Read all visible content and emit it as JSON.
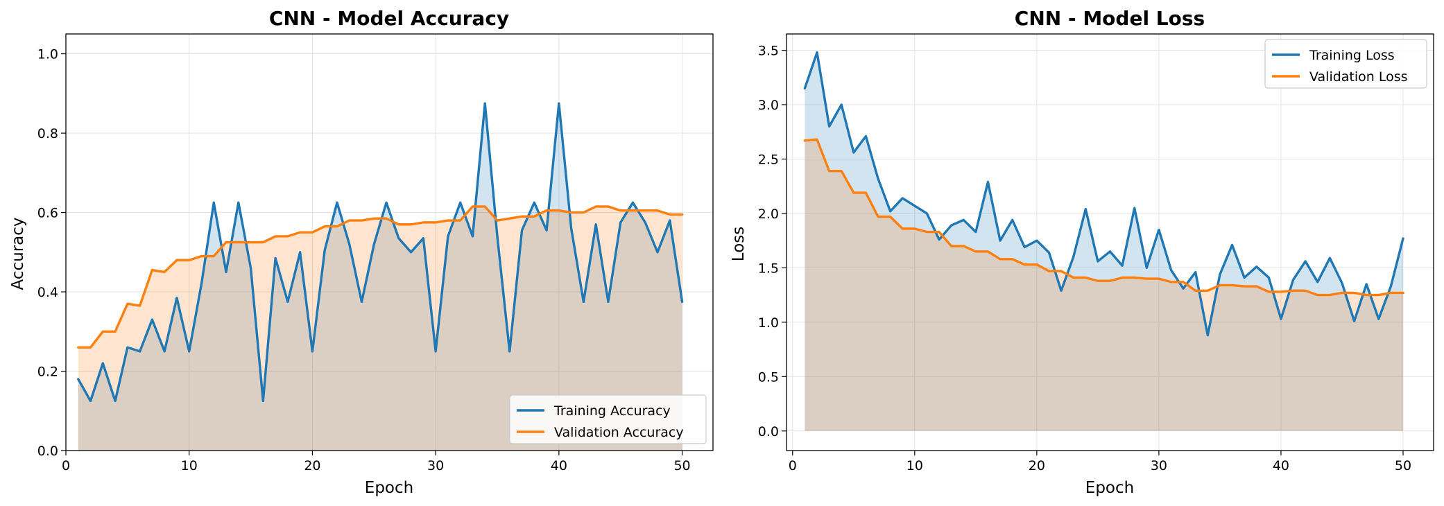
{
  "colors": {
    "training": "#1f77b4",
    "validation": "#ff7f0e",
    "grid": "#e3e3e3"
  },
  "chart_data": [
    {
      "type": "line",
      "title": "CNN - Model Accuracy",
      "xlabel": "Epoch",
      "ylabel": "Accuracy",
      "xlim": [
        0,
        52.5
      ],
      "ylim": [
        0,
        1.05
      ],
      "xticks": [
        "0",
        "10",
        "20",
        "30",
        "40",
        "50"
      ],
      "yticks": [
        "0.0",
        "0.2",
        "0.4",
        "0.6",
        "0.8",
        "1.0"
      ],
      "grid": true,
      "fill_under": true,
      "legend_position": "lower-right",
      "x": [
        1,
        2,
        3,
        4,
        5,
        6,
        7,
        8,
        9,
        10,
        11,
        12,
        13,
        14,
        15,
        16,
        17,
        18,
        19,
        20,
        21,
        22,
        23,
        24,
        25,
        26,
        27,
        28,
        29,
        30,
        31,
        32,
        33,
        34,
        35,
        36,
        37,
        38,
        39,
        40,
        41,
        42,
        43,
        44,
        45,
        46,
        47,
        48,
        49,
        50
      ],
      "series": [
        {
          "name": "Training Accuracy",
          "values": [
            0.18,
            0.125,
            0.22,
            0.125,
            0.26,
            0.25,
            0.33,
            0.25,
            0.385,
            0.25,
            0.42,
            0.625,
            0.45,
            0.625,
            0.46,
            0.125,
            0.485,
            0.375,
            0.5,
            0.25,
            0.505,
            0.625,
            0.52,
            0.375,
            0.52,
            0.625,
            0.535,
            0.5,
            0.535,
            0.25,
            0.54,
            0.625,
            0.54,
            0.875,
            0.54,
            0.25,
            0.555,
            0.625,
            0.555,
            0.875,
            0.56,
            0.375,
            0.57,
            0.375,
            0.575,
            0.625,
            0.575,
            0.5,
            0.58,
            0.375
          ]
        },
        {
          "name": "Validation Accuracy",
          "values": [
            0.26,
            0.26,
            0.3,
            0.3,
            0.37,
            0.365,
            0.455,
            0.45,
            0.48,
            0.48,
            0.49,
            0.49,
            0.525,
            0.525,
            0.525,
            0.525,
            0.54,
            0.54,
            0.55,
            0.55,
            0.565,
            0.565,
            0.58,
            0.58,
            0.585,
            0.585,
            0.57,
            0.57,
            0.575,
            0.575,
            0.58,
            0.58,
            0.615,
            0.615,
            0.58,
            0.585,
            0.59,
            0.59,
            0.605,
            0.605,
            0.6,
            0.6,
            0.615,
            0.615,
            0.605,
            0.605,
            0.605,
            0.605,
            0.595,
            0.595
          ]
        }
      ]
    },
    {
      "type": "line",
      "title": "CNN - Model Loss",
      "xlabel": "Epoch",
      "ylabel": "Loss",
      "xlim": [
        -0.5,
        52.5
      ],
      "ylim": [
        -0.18,
        3.65
      ],
      "xticks": [
        "0",
        "10",
        "20",
        "30",
        "40",
        "50"
      ],
      "yticks": [
        "0.0",
        "0.5",
        "1.0",
        "1.5",
        "2.0",
        "2.5",
        "3.0",
        "3.5"
      ],
      "grid": true,
      "fill_under": true,
      "legend_position": "upper-right",
      "x": [
        1,
        2,
        3,
        4,
        5,
        6,
        7,
        8,
        9,
        10,
        11,
        12,
        13,
        14,
        15,
        16,
        17,
        18,
        19,
        20,
        21,
        22,
        23,
        24,
        25,
        26,
        27,
        28,
        29,
        30,
        31,
        32,
        33,
        34,
        35,
        36,
        37,
        38,
        39,
        40,
        41,
        42,
        43,
        44,
        45,
        46,
        47,
        48,
        49,
        50
      ],
      "series": [
        {
          "name": "Training Loss",
          "values": [
            3.15,
            3.48,
            2.8,
            3.0,
            2.56,
            2.71,
            2.32,
            2.02,
            2.14,
            2.07,
            2.0,
            1.76,
            1.89,
            1.94,
            1.83,
            2.29,
            1.75,
            1.94,
            1.69,
            1.75,
            1.64,
            1.29,
            1.6,
            2.04,
            1.56,
            1.65,
            1.52,
            2.05,
            1.5,
            1.85,
            1.48,
            1.31,
            1.46,
            0.88,
            1.44,
            1.71,
            1.41,
            1.51,
            1.41,
            1.03,
            1.39,
            1.56,
            1.37,
            1.59,
            1.36,
            1.01,
            1.35,
            1.03,
            1.33,
            1.77
          ]
        },
        {
          "name": "Validation Loss",
          "values": [
            2.67,
            2.68,
            2.39,
            2.39,
            2.19,
            2.19,
            1.97,
            1.97,
            1.86,
            1.86,
            1.83,
            1.83,
            1.7,
            1.7,
            1.65,
            1.65,
            1.58,
            1.58,
            1.53,
            1.53,
            1.47,
            1.47,
            1.41,
            1.41,
            1.38,
            1.38,
            1.41,
            1.41,
            1.4,
            1.4,
            1.37,
            1.37,
            1.29,
            1.29,
            1.34,
            1.34,
            1.33,
            1.33,
            1.28,
            1.28,
            1.29,
            1.29,
            1.25,
            1.25,
            1.27,
            1.27,
            1.25,
            1.25,
            1.27,
            1.27
          ]
        }
      ]
    }
  ]
}
